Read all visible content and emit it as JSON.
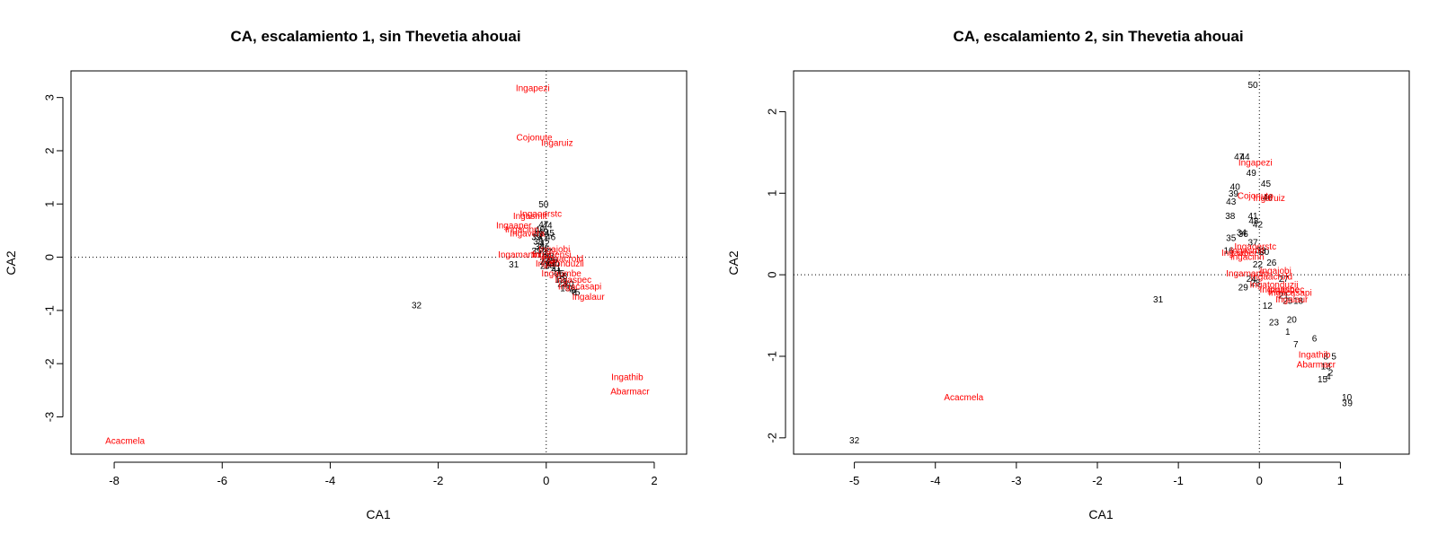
{
  "colors": {
    "species": "#ff0000",
    "sites": "#000000",
    "axes": "#000000",
    "reference_lines": "#000000"
  },
  "chart_data": [
    {
      "type": "scatter",
      "title": "CA, escalamiento 1, sin Thevetia ahouai",
      "xlabel": "CA1",
      "ylabel": "CA2",
      "xlim": [
        -8.8,
        2.6
      ],
      "ylim": [
        -3.7,
        3.5
      ],
      "xticks": [
        -8,
        -6,
        -4,
        -2,
        0,
        2
      ],
      "yticks": [
        -3,
        -2,
        -1,
        0,
        1,
        2,
        3
      ],
      "reference_lines": {
        "x": 0,
        "y": 0,
        "style": "dotted"
      },
      "grid": false,
      "sites": [
        {
          "label": "50",
          "x": -0.05,
          "y": 1.0
        },
        {
          "label": "31",
          "x": -0.6,
          "y": -0.13
        },
        {
          "label": "32",
          "x": -2.4,
          "y": -0.9
        },
        {
          "label": "47",
          "x": -0.05,
          "y": 0.62
        },
        {
          "label": "44",
          "x": 0.02,
          "y": 0.6
        },
        {
          "label": "40",
          "x": -0.12,
          "y": 0.52
        },
        {
          "label": "49",
          "x": -0.05,
          "y": 0.48
        },
        {
          "label": "45",
          "x": 0.06,
          "y": 0.46
        },
        {
          "label": "43",
          "x": -0.15,
          "y": 0.44
        },
        {
          "label": "39",
          "x": -0.18,
          "y": 0.38
        },
        {
          "label": "41",
          "x": -0.06,
          "y": 0.38
        },
        {
          "label": "46",
          "x": 0.08,
          "y": 0.38
        },
        {
          "label": "38",
          "x": -0.15,
          "y": 0.3
        },
        {
          "label": "42",
          "x": -0.03,
          "y": 0.26
        },
        {
          "label": "34",
          "x": -0.12,
          "y": 0.2
        },
        {
          "label": "36",
          "x": -0.04,
          "y": 0.16
        },
        {
          "label": "35",
          "x": -0.18,
          "y": 0.12
        },
        {
          "label": "37",
          "x": 0.02,
          "y": 0.1
        },
        {
          "label": "16",
          "x": -0.08,
          "y": 0.05
        },
        {
          "label": "33",
          "x": 0.05,
          "y": 0.03
        },
        {
          "label": "22",
          "x": 0.0,
          "y": -0.02
        },
        {
          "label": "26",
          "x": 0.12,
          "y": -0.05
        },
        {
          "label": "24",
          "x": -0.03,
          "y": -0.08
        },
        {
          "label": "27",
          "x": 0.09,
          "y": -0.1
        },
        {
          "label": "30",
          "x": 0.15,
          "y": -0.12
        },
        {
          "label": "28",
          "x": 0.06,
          "y": -0.15
        },
        {
          "label": "29",
          "x": -0.02,
          "y": -0.16
        },
        {
          "label": "21",
          "x": 0.18,
          "y": -0.2
        },
        {
          "label": "11",
          "x": 0.2,
          "y": -0.26
        },
        {
          "label": "25",
          "x": 0.25,
          "y": -0.3
        },
        {
          "label": "18",
          "x": 0.3,
          "y": -0.35
        },
        {
          "label": "12",
          "x": 0.25,
          "y": -0.42
        },
        {
          "label": "1",
          "x": 0.35,
          "y": -0.45
        },
        {
          "label": "23",
          "x": 0.3,
          "y": -0.5
        },
        {
          "label": "20",
          "x": 0.42,
          "y": -0.5
        },
        {
          "label": "13",
          "x": 0.35,
          "y": -0.58
        },
        {
          "label": "7",
          "x": 0.45,
          "y": -0.6
        },
        {
          "label": "6",
          "x": 0.5,
          "y": -0.62
        },
        {
          "label": "8",
          "x": 0.52,
          "y": -0.66
        },
        {
          "label": "5",
          "x": 0.58,
          "y": -0.66
        }
      ],
      "species": [
        {
          "label": "Ingapezi",
          "x": -0.25,
          "y": 3.18
        },
        {
          "label": "Cojonute",
          "x": -0.22,
          "y": 2.25
        },
        {
          "label": "Ingaruiz",
          "x": 0.2,
          "y": 2.15
        },
        {
          "label": "Ingaoerstc",
          "x": -0.1,
          "y": 0.82
        },
        {
          "label": "Ingasmit",
          "x": -0.3,
          "y": 0.78
        },
        {
          "label": "Ingaaper",
          "x": -0.6,
          "y": 0.6
        },
        {
          "label": "Ingacinn",
          "x": -0.45,
          "y": 0.52
        },
        {
          "label": "Ingavera",
          "x": -0.35,
          "y": 0.45
        },
        {
          "label": "Ingamartin",
          "x": -0.5,
          "y": 0.05
        },
        {
          "label": "Ingajobi",
          "x": 0.15,
          "y": 0.15
        },
        {
          "label": "Ingadensi",
          "x": 0.1,
          "y": 0.05
        },
        {
          "label": "Ingaacrold",
          "x": 0.3,
          "y": -0.02
        },
        {
          "label": "Ingatonduzii",
          "x": 0.25,
          "y": -0.12
        },
        {
          "label": "Ingaumbe",
          "x": 0.28,
          "y": -0.3
        },
        {
          "label": "Ingaspec",
          "x": 0.5,
          "y": -0.42
        },
        {
          "label": "Ingacasapi",
          "x": 0.62,
          "y": -0.55
        },
        {
          "label": "Ingalaur",
          "x": 0.78,
          "y": -0.74
        },
        {
          "label": "Ingathib",
          "x": 1.5,
          "y": -2.25
        },
        {
          "label": "Abarmacr",
          "x": 1.55,
          "y": -2.52
        },
        {
          "label": "Acacmela",
          "x": -7.8,
          "y": -3.45
        }
      ]
    },
    {
      "type": "scatter",
      "title": "CA, escalamiento 2, sin Thevetia ahouai",
      "xlabel": "CA1",
      "ylabel": "CA2",
      "xlim": [
        -5.75,
        1.85
      ],
      "ylim": [
        -2.2,
        2.5
      ],
      "xticks": [
        -5,
        -4,
        -3,
        -2,
        -1,
        0,
        1
      ],
      "yticks": [
        -2,
        -1,
        0,
        1,
        2
      ],
      "reference_lines": {
        "x": 0,
        "y": 0,
        "style": "dotted"
      },
      "grid": false,
      "sites": [
        {
          "label": "50",
          "x": -0.08,
          "y": 2.33
        },
        {
          "label": "47",
          "x": -0.25,
          "y": 1.45
        },
        {
          "label": "44",
          "x": -0.18,
          "y": 1.45
        },
        {
          "label": "49",
          "x": -0.1,
          "y": 1.25
        },
        {
          "label": "45",
          "x": 0.08,
          "y": 1.12
        },
        {
          "label": "40",
          "x": -0.3,
          "y": 1.08
        },
        {
          "label": "39",
          "x": -0.32,
          "y": 1.0
        },
        {
          "label": "43",
          "x": -0.35,
          "y": 0.9
        },
        {
          "label": "46",
          "x": 0.1,
          "y": 0.95
        },
        {
          "label": "38",
          "x": -0.36,
          "y": 0.72
        },
        {
          "label": "41",
          "x": -0.08,
          "y": 0.72
        },
        {
          "label": "48",
          "x": -0.07,
          "y": 0.66
        },
        {
          "label": "42",
          "x": -0.02,
          "y": 0.62
        },
        {
          "label": "34",
          "x": -0.22,
          "y": 0.52
        },
        {
          "label": "36",
          "x": -0.2,
          "y": 0.5
        },
        {
          "label": "35",
          "x": -0.35,
          "y": 0.45
        },
        {
          "label": "37",
          "x": -0.08,
          "y": 0.4
        },
        {
          "label": "16",
          "x": -0.38,
          "y": 0.3
        },
        {
          "label": "33",
          "x": 0.02,
          "y": 0.3
        },
        {
          "label": "30",
          "x": 0.06,
          "y": 0.28
        },
        {
          "label": "22",
          "x": -0.02,
          "y": 0.13
        },
        {
          "label": "26",
          "x": 0.15,
          "y": 0.15
        },
        {
          "label": "24",
          "x": -0.1,
          "y": -0.05
        },
        {
          "label": "27",
          "x": 0.3,
          "y": -0.05
        },
        {
          "label": "28",
          "x": -0.05,
          "y": -0.1
        },
        {
          "label": "29",
          "x": -0.2,
          "y": -0.15
        },
        {
          "label": "21",
          "x": 0.3,
          "y": -0.25
        },
        {
          "label": "25",
          "x": 0.35,
          "y": -0.32
        },
        {
          "label": "18",
          "x": 0.48,
          "y": -0.32
        },
        {
          "label": "12",
          "x": 0.1,
          "y": -0.38
        },
        {
          "label": "1",
          "x": 0.35,
          "y": -0.7
        },
        {
          "label": "23",
          "x": 0.18,
          "y": -0.58
        },
        {
          "label": "20",
          "x": 0.4,
          "y": -0.55
        },
        {
          "label": "6",
          "x": 0.68,
          "y": -0.78
        },
        {
          "label": "7",
          "x": 0.45,
          "y": -0.85
        },
        {
          "label": "8",
          "x": 0.82,
          "y": -1.0
        },
        {
          "label": "5",
          "x": 0.92,
          "y": -1.0
        },
        {
          "label": "13",
          "x": 0.82,
          "y": -1.12
        },
        {
          "label": "2",
          "x": 0.88,
          "y": -1.2
        },
        {
          "label": "15",
          "x": 0.78,
          "y": -1.28
        },
        {
          "label": "4",
          "x": 0.85,
          "y": -1.25
        },
        {
          "label": "10",
          "x": 1.08,
          "y": -1.5
        },
        {
          "label": "3",
          "x": 1.05,
          "y": -1.57
        },
        {
          "label": "9",
          "x": 1.12,
          "y": -1.57
        },
        {
          "label": "31",
          "x": -1.25,
          "y": -0.3
        },
        {
          "label": "32",
          "x": -5.0,
          "y": -2.03
        }
      ],
      "species": [
        {
          "label": "Ingapezi",
          "x": -0.05,
          "y": 1.38
        },
        {
          "label": "Cojonute",
          "x": -0.05,
          "y": 0.97
        },
        {
          "label": "Ingaruiz",
          "x": 0.12,
          "y": 0.94
        },
        {
          "label": "Ingaoerstc",
          "x": -0.05,
          "y": 0.35
        },
        {
          "label": "Ingasmit",
          "x": -0.15,
          "y": 0.3
        },
        {
          "label": "Ingaaper",
          "x": -0.25,
          "y": 0.27
        },
        {
          "label": "Ingacinn",
          "x": -0.15,
          "y": 0.22
        },
        {
          "label": "Ingajobi",
          "x": 0.2,
          "y": 0.05
        },
        {
          "label": "Ingamartin",
          "x": -0.15,
          "y": 0.02
        },
        {
          "label": "Ingaacrold",
          "x": 0.15,
          "y": -0.02
        },
        {
          "label": "Ingatonduzii",
          "x": 0.18,
          "y": -0.12
        },
        {
          "label": "Ingaumbe",
          "x": 0.25,
          "y": -0.18
        },
        {
          "label": "Ingaspec",
          "x": 0.33,
          "y": -0.18
        },
        {
          "label": "Ingacasapi",
          "x": 0.38,
          "y": -0.22
        },
        {
          "label": "Ingalaur",
          "x": 0.4,
          "y": -0.3
        },
        {
          "label": "Ingathib",
          "x": 0.68,
          "y": -0.98
        },
        {
          "label": "Abarmacr",
          "x": 0.7,
          "y": -1.1
        },
        {
          "label": "Acacmela",
          "x": -3.65,
          "y": -1.5
        }
      ]
    }
  ]
}
